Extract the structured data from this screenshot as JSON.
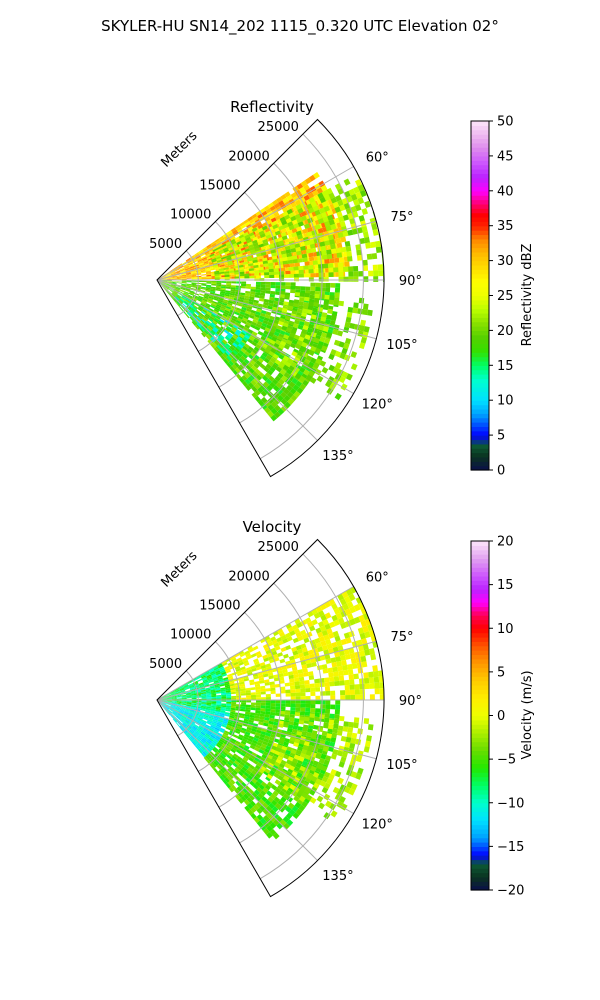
{
  "figure_title": "SKYLER-HU  SN14_202  1115_0.320 UTC Elevation 02°",
  "chart_data": [
    {
      "type": "heatmap",
      "subtype": "polar-sector-ppi",
      "title": "Reflectivity",
      "range_label": "Meters",
      "range_ticks": [
        5000,
        10000,
        15000,
        20000,
        25000
      ],
      "range_tick_labels": [
        "5000",
        "10000",
        "15000",
        "20000",
        "25000"
      ],
      "rlim": [
        0,
        27500
      ],
      "azimuth_ticks_deg": [
        60,
        75,
        90,
        105,
        120,
        135
      ],
      "azimuth_tick_labels": [
        "60°",
        "75°",
        "90°",
        "105°",
        "120°",
        "135°"
      ],
      "azimuth_range_deg": [
        45,
        150
      ],
      "grid": true,
      "colorbar": {
        "label": "Reflectivity dBZ",
        "min": 0,
        "max": 50,
        "ticks": [
          0,
          5,
          10,
          15,
          20,
          25,
          30,
          35,
          40,
          45,
          50
        ],
        "tick_labels": [
          "0",
          "5",
          "10",
          "15",
          "20",
          "25",
          "30",
          "35",
          "40",
          "45",
          "50"
        ],
        "color_stops": [
          [
            0,
            "#0a0f4a"
          ],
          [
            2,
            "#0b3320"
          ],
          [
            3.5,
            "#0c5a35"
          ],
          [
            5,
            "#0000ff"
          ],
          [
            8,
            "#00a0ff"
          ],
          [
            10,
            "#00e0ff"
          ],
          [
            13,
            "#00ffcc"
          ],
          [
            15,
            "#00ff66"
          ],
          [
            17,
            "#33e000"
          ],
          [
            19,
            "#55d000"
          ],
          [
            21,
            "#88e000"
          ],
          [
            23,
            "#bbff00"
          ],
          [
            25,
            "#eeff00"
          ],
          [
            27,
            "#ffff00"
          ],
          [
            29,
            "#ffdd00"
          ],
          [
            31,
            "#ffbb00"
          ],
          [
            33,
            "#ff8800"
          ],
          [
            35,
            "#ff2200"
          ],
          [
            36.5,
            "#ff0000"
          ],
          [
            38,
            "#ff0066"
          ],
          [
            40,
            "#ff00ff"
          ],
          [
            42,
            "#bb22ff"
          ],
          [
            44,
            "#cc55ff"
          ],
          [
            46,
            "#dd88ee"
          ],
          [
            48,
            "#eeb8f0"
          ],
          [
            50,
            "#fce6fa"
          ]
        ]
      },
      "echo_regions": [
        {
          "az": [
            56,
            88
          ],
          "r": [
            0,
            23000
          ],
          "value": 30,
          "spread": 4,
          "density": 0.95
        },
        {
          "az": [
            62,
            90
          ],
          "r": [
            7000,
            27500
          ],
          "value": 22,
          "spread": 3,
          "density": 0.6
        },
        {
          "az": [
            91,
            140
          ],
          "r": [
            0,
            22000
          ],
          "value": 19,
          "spread": 3,
          "density": 0.85
        },
        {
          "az": [
            95,
            125
          ],
          "r": [
            15000,
            26000
          ],
          "value": 21,
          "spread": 3,
          "density": 0.45
        },
        {
          "az": [
            120,
            138
          ],
          "r": [
            3000,
            13000
          ],
          "value": 13,
          "spread": 3,
          "density": 0.5
        }
      ]
    },
    {
      "type": "heatmap",
      "subtype": "polar-sector-ppi",
      "title": "Velocity",
      "range_label": "Meters",
      "range_ticks": [
        5000,
        10000,
        15000,
        20000,
        25000
      ],
      "range_tick_labels": [
        "5000",
        "10000",
        "15000",
        "20000",
        "25000"
      ],
      "rlim": [
        0,
        27500
      ],
      "azimuth_ticks_deg": [
        60,
        75,
        90,
        105,
        120,
        135
      ],
      "azimuth_tick_labels": [
        "60°",
        "75°",
        "90°",
        "105°",
        "120°",
        "135°"
      ],
      "azimuth_range_deg": [
        45,
        150
      ],
      "grid": true,
      "colorbar": {
        "label": "Velocity (m/s)",
        "min": -20,
        "max": 20,
        "ticks": [
          -20,
          -15,
          -10,
          -5,
          0,
          5,
          10,
          15,
          20
        ],
        "tick_labels": [
          "−20",
          "−15",
          "−10",
          "−5",
          "0",
          "5",
          "10",
          "15",
          "20"
        ],
        "color_stops": [
          [
            -20,
            "#0a0f4a"
          ],
          [
            -18.5,
            "#0b3320"
          ],
          [
            -17,
            "#0c5a35"
          ],
          [
            -16,
            "#0000ff"
          ],
          [
            -14,
            "#00a0ff"
          ],
          [
            -12,
            "#00e0ff"
          ],
          [
            -10,
            "#00ffcc"
          ],
          [
            -8,
            "#00ff66"
          ],
          [
            -6,
            "#22e800"
          ],
          [
            -4,
            "#66dd00"
          ],
          [
            -2,
            "#aaee00"
          ],
          [
            0,
            "#eeff00"
          ],
          [
            2,
            "#ffee00"
          ],
          [
            4,
            "#ffcc00"
          ],
          [
            6,
            "#ff9900"
          ],
          [
            8,
            "#ff5500"
          ],
          [
            10,
            "#ff0000"
          ],
          [
            11.5,
            "#ff0055"
          ],
          [
            13,
            "#ff00ff"
          ],
          [
            14.5,
            "#bb22ff"
          ],
          [
            16,
            "#cc55ff"
          ],
          [
            18,
            "#e0a0f0"
          ],
          [
            20,
            "#fce6fa"
          ]
        ]
      },
      "echo_regions": [
        {
          "az": [
            100,
            140
          ],
          "r": [
            0,
            9000
          ],
          "value": -11,
          "spread": 2,
          "density": 0.95
        },
        {
          "az": [
            60,
            100
          ],
          "r": [
            0,
            9000
          ],
          "value": -8,
          "spread": 2.5,
          "density": 0.95
        },
        {
          "az": [
            60,
            90
          ],
          "r": [
            9000,
            27500
          ],
          "value": 0,
          "spread": 2,
          "density": 0.7
        },
        {
          "az": [
            90,
            140
          ],
          "r": [
            9000,
            22000
          ],
          "value": -5,
          "spread": 2,
          "density": 0.85
        },
        {
          "az": [
            95,
            125
          ],
          "r": [
            15000,
            26000
          ],
          "value": -2,
          "spread": 2,
          "density": 0.45
        }
      ]
    }
  ]
}
